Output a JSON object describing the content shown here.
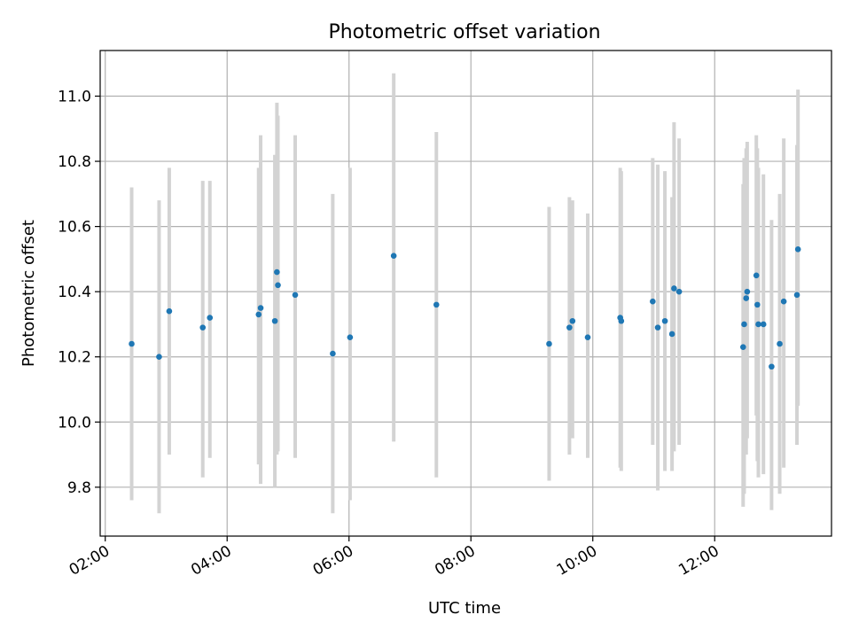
{
  "chart_data": {
    "type": "scatter",
    "title": "Photometric offset variation",
    "xlabel": "UTC time",
    "ylabel": "Photometric offset",
    "grid": true,
    "xlim": [
      "01:55",
      "13:55"
    ],
    "ylim": [
      9.65,
      11.14
    ],
    "xticks": [
      "02:00",
      "04:00",
      "06:00",
      "08:00",
      "10:00",
      "12:00"
    ],
    "yticks": [
      9.8,
      10.0,
      10.2,
      10.4,
      10.6,
      10.8,
      11.0
    ],
    "points": [
      {
        "x": "02:26",
        "y": 10.24,
        "lo": 9.76,
        "hi": 10.72
      },
      {
        "x": "02:53",
        "y": 10.2,
        "lo": 9.72,
        "hi": 10.68
      },
      {
        "x": "03:03",
        "y": 10.34,
        "lo": 9.9,
        "hi": 10.78
      },
      {
        "x": "03:36",
        "y": 10.29,
        "lo": 9.83,
        "hi": 10.74
      },
      {
        "x": "03:43",
        "y": 10.32,
        "lo": 9.89,
        "hi": 10.74
      },
      {
        "x": "04:31",
        "y": 10.33,
        "lo": 9.87,
        "hi": 10.78
      },
      {
        "x": "04:33",
        "y": 10.35,
        "lo": 9.81,
        "hi": 10.88
      },
      {
        "x": "04:47",
        "y": 10.31,
        "lo": 9.8,
        "hi": 10.82
      },
      {
        "x": "04:49",
        "y": 10.46,
        "lo": 9.9,
        "hi": 10.98
      },
      {
        "x": "04:50",
        "y": 10.42,
        "lo": 9.91,
        "hi": 10.94
      },
      {
        "x": "05:07",
        "y": 10.39,
        "lo": 9.89,
        "hi": 10.88
      },
      {
        "x": "05:44",
        "y": 10.21,
        "lo": 9.72,
        "hi": 10.7
      },
      {
        "x": "06:01",
        "y": 10.26,
        "lo": 9.76,
        "hi": 10.78
      },
      {
        "x": "06:44",
        "y": 10.51,
        "lo": 9.94,
        "hi": 11.07
      },
      {
        "x": "07:26",
        "y": 10.36,
        "lo": 9.83,
        "hi": 10.89
      },
      {
        "x": "09:17",
        "y": 10.24,
        "lo": 9.82,
        "hi": 10.66
      },
      {
        "x": "09:37",
        "y": 10.29,
        "lo": 9.9,
        "hi": 10.69
      },
      {
        "x": "09:40",
        "y": 10.31,
        "lo": 9.95,
        "hi": 10.68
      },
      {
        "x": "09:55",
        "y": 10.26,
        "lo": 9.89,
        "hi": 10.64
      },
      {
        "x": "10:27",
        "y": 10.32,
        "lo": 9.86,
        "hi": 10.78
      },
      {
        "x": "10:28",
        "y": 10.31,
        "lo": 9.85,
        "hi": 10.77
      },
      {
        "x": "10:59",
        "y": 10.37,
        "lo": 9.93,
        "hi": 10.81
      },
      {
        "x": "11:04",
        "y": 10.29,
        "lo": 9.79,
        "hi": 10.79
      },
      {
        "x": "11:11",
        "y": 10.31,
        "lo": 9.85,
        "hi": 10.77
      },
      {
        "x": "11:18",
        "y": 10.27,
        "lo": 9.85,
        "hi": 10.69
      },
      {
        "x": "11:20",
        "y": 10.41,
        "lo": 9.91,
        "hi": 10.92
      },
      {
        "x": "11:25",
        "y": 10.4,
        "lo": 9.93,
        "hi": 10.87
      },
      {
        "x": "12:28",
        "y": 10.23,
        "lo": 9.74,
        "hi": 10.73
      },
      {
        "x": "12:29",
        "y": 10.3,
        "lo": 9.78,
        "hi": 10.81
      },
      {
        "x": "12:31",
        "y": 10.38,
        "lo": 9.9,
        "hi": 10.84
      },
      {
        "x": "12:32",
        "y": 10.4,
        "lo": 9.95,
        "hi": 10.86
      },
      {
        "x": "12:41",
        "y": 10.45,
        "lo": 10.02,
        "hi": 10.88
      },
      {
        "x": "12:42",
        "y": 10.36,
        "lo": 9.88,
        "hi": 10.84
      },
      {
        "x": "12:43",
        "y": 10.3,
        "lo": 9.83,
        "hi": 10.78
      },
      {
        "x": "12:48",
        "y": 10.3,
        "lo": 9.84,
        "hi": 10.76
      },
      {
        "x": "12:56",
        "y": 10.17,
        "lo": 9.73,
        "hi": 10.62
      },
      {
        "x": "13:04",
        "y": 10.24,
        "lo": 9.78,
        "hi": 10.7
      },
      {
        "x": "13:08",
        "y": 10.37,
        "lo": 9.86,
        "hi": 10.87
      },
      {
        "x": "13:21",
        "y": 10.39,
        "lo": 9.93,
        "hi": 10.85
      },
      {
        "x": "13:22",
        "y": 10.53,
        "lo": 10.05,
        "hi": 11.02
      }
    ]
  }
}
